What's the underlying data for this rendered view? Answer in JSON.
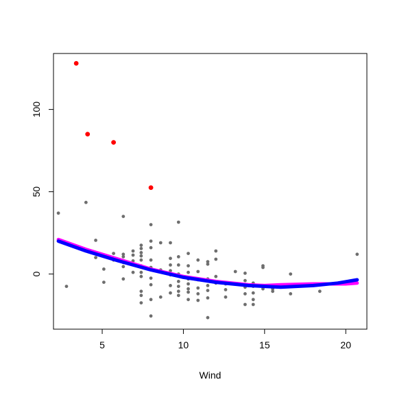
{
  "chart_data": {
    "type": "scatter",
    "xlabel": "Wind",
    "ylabel": "",
    "xlim": [
      2.0,
      21.3
    ],
    "ylim": [
      -33.5,
      134.0
    ],
    "x_ticks": [
      5,
      10,
      15,
      20
    ],
    "y_ticks": [
      0,
      50,
      100
    ],
    "grid": false,
    "legend": "none",
    "colors": {
      "points": "#6e6e6e",
      "outliers": "#ff0000",
      "smooth_magenta": "#ff00ff",
      "smooth_blue": "#0000ff",
      "axis": "#000000"
    },
    "series": [
      {
        "kind": "points",
        "color_key": "points",
        "points": [
          [
            2.3,
            37
          ],
          [
            2.8,
            -7.5
          ],
          [
            4.0,
            43.5
          ],
          [
            4.6,
            20.5
          ],
          [
            4.6,
            10
          ],
          [
            5.1,
            3
          ],
          [
            5.1,
            -5
          ],
          [
            5.7,
            12.5
          ],
          [
            5.7,
            8.5
          ],
          [
            6.3,
            35
          ],
          [
            6.3,
            12
          ],
          [
            6.3,
            10.5
          ],
          [
            6.3,
            7
          ],
          [
            6.3,
            4.5
          ],
          [
            6.3,
            -3
          ],
          [
            6.9,
            14
          ],
          [
            6.9,
            11.5
          ],
          [
            6.9,
            8
          ],
          [
            6.9,
            6
          ],
          [
            6.9,
            1
          ],
          [
            7.4,
            17.5
          ],
          [
            7.4,
            15.5
          ],
          [
            7.4,
            13
          ],
          [
            7.4,
            11
          ],
          [
            7.4,
            8.5
          ],
          [
            7.4,
            5
          ],
          [
            7.4,
            1
          ],
          [
            7.4,
            -1.5
          ],
          [
            7.4,
            -10.5
          ],
          [
            7.4,
            -13
          ],
          [
            7.4,
            -17.5
          ],
          [
            8.0,
            30
          ],
          [
            8.0,
            20
          ],
          [
            8.0,
            16
          ],
          [
            8.0,
            8.5
          ],
          [
            8.0,
            4
          ],
          [
            8.0,
            -2.5
          ],
          [
            8.0,
            -6.5
          ],
          [
            8.0,
            -15.5
          ],
          [
            8.0,
            -25.5
          ],
          [
            8.6,
            19
          ],
          [
            8.6,
            2.5
          ],
          [
            8.6,
            -14
          ],
          [
            9.2,
            19
          ],
          [
            9.2,
            9.5
          ],
          [
            9.2,
            5.5
          ],
          [
            9.2,
            2
          ],
          [
            9.2,
            -0.5
          ],
          [
            9.2,
            -7
          ],
          [
            9.2,
            -11.5
          ],
          [
            9.7,
            31.5
          ],
          [
            9.7,
            10.5
          ],
          [
            9.7,
            5.5
          ],
          [
            9.7,
            0
          ],
          [
            9.7,
            -4.5
          ],
          [
            9.7,
            -7.5
          ],
          [
            9.7,
            -10.5
          ],
          [
            9.7,
            -13
          ],
          [
            10.3,
            12.5
          ],
          [
            10.3,
            5
          ],
          [
            10.3,
            1
          ],
          [
            10.3,
            -3
          ],
          [
            10.3,
            -6
          ],
          [
            10.3,
            -9
          ],
          [
            10.3,
            -11
          ],
          [
            10.3,
            -15.5
          ],
          [
            10.9,
            8.5
          ],
          [
            10.9,
            1.5
          ],
          [
            10.9,
            -3.5
          ],
          [
            10.9,
            -8.5
          ],
          [
            10.9,
            -12
          ],
          [
            10.9,
            -16
          ],
          [
            11.5,
            7.5
          ],
          [
            11.5,
            6
          ],
          [
            11.5,
            -3
          ],
          [
            11.5,
            -7
          ],
          [
            11.5,
            -10
          ],
          [
            11.5,
            -14.5
          ],
          [
            11.5,
            -26.5
          ],
          [
            12.0,
            14
          ],
          [
            12.0,
            9
          ],
          [
            12.0,
            -1.5
          ],
          [
            12.0,
            -5.5
          ],
          [
            12.6,
            -6
          ],
          [
            12.6,
            -9.5
          ],
          [
            12.6,
            -14
          ],
          [
            13.2,
            1.5
          ],
          [
            13.8,
            0.5
          ],
          [
            13.8,
            -4
          ],
          [
            13.8,
            -8
          ],
          [
            13.8,
            -12
          ],
          [
            13.8,
            -18.5
          ],
          [
            14.3,
            -5.5
          ],
          [
            14.3,
            -7.5
          ],
          [
            14.3,
            -11.5
          ],
          [
            14.3,
            -15.5
          ],
          [
            14.3,
            -18.5
          ],
          [
            14.9,
            5
          ],
          [
            14.9,
            4
          ],
          [
            14.9,
            -7.5
          ],
          [
            14.9,
            -9
          ],
          [
            15.5,
            -9
          ],
          [
            15.5,
            -10.5
          ],
          [
            16.6,
            0
          ],
          [
            16.6,
            -12
          ],
          [
            18.4,
            -10.5
          ],
          [
            20.7,
            12
          ]
        ]
      },
      {
        "kind": "points",
        "color_key": "outliers",
        "points": [
          [
            3.4,
            128
          ],
          [
            4.1,
            85
          ],
          [
            5.7,
            80
          ],
          [
            8.0,
            52.5
          ]
        ]
      },
      {
        "kind": "line",
        "color_key": "smooth_magenta",
        "points": [
          [
            2.3,
            21
          ],
          [
            4.0,
            15
          ],
          [
            6.0,
            9
          ],
          [
            8.0,
            3
          ],
          [
            10.0,
            -1.5
          ],
          [
            12.0,
            -4.5
          ],
          [
            14.0,
            -6.5
          ],
          [
            15.0,
            -7
          ],
          [
            16.0,
            -6.5
          ],
          [
            18.0,
            -6
          ],
          [
            20.0,
            -6
          ],
          [
            20.7,
            -5.5
          ]
        ]
      },
      {
        "kind": "line",
        "color_key": "smooth_blue",
        "points": [
          [
            2.3,
            20
          ],
          [
            4.0,
            14
          ],
          [
            6.0,
            8
          ],
          [
            8.0,
            2.5
          ],
          [
            10.0,
            -2
          ],
          [
            12.0,
            -5
          ],
          [
            14.0,
            -7
          ],
          [
            15.0,
            -7.5
          ],
          [
            16.0,
            -8
          ],
          [
            18.0,
            -7
          ],
          [
            19.5,
            -5.5
          ],
          [
            20.7,
            -3.5
          ]
        ]
      }
    ]
  }
}
